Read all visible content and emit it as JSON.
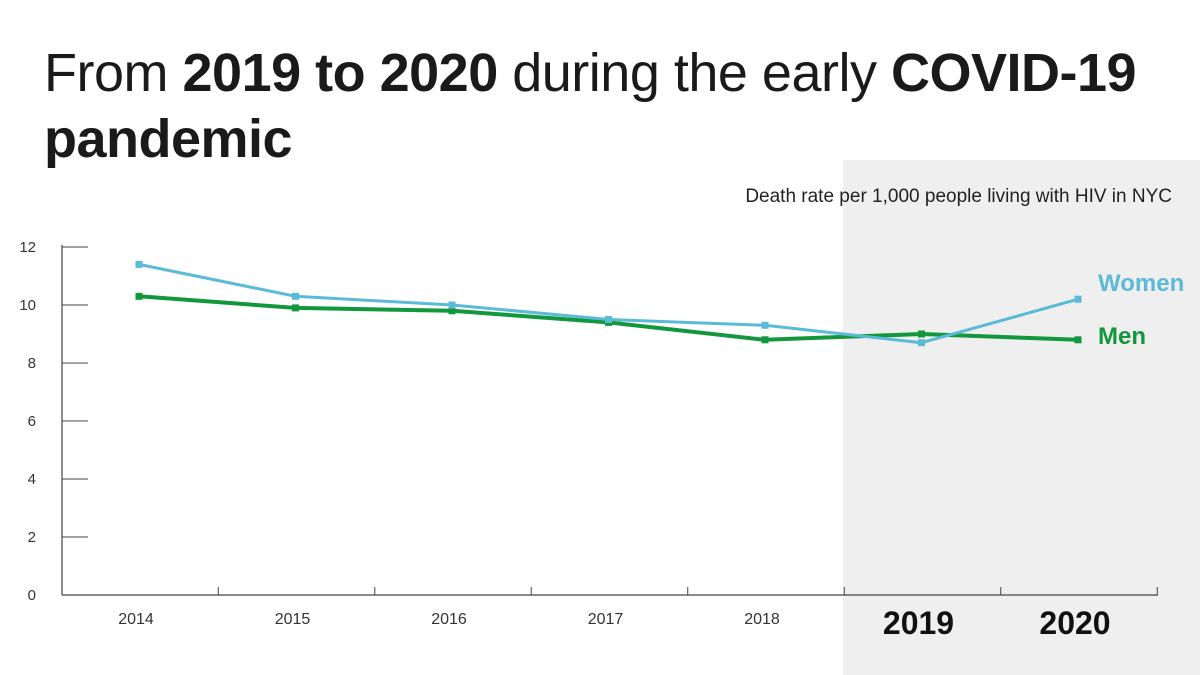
{
  "title": {
    "parts": [
      {
        "text": "From ",
        "bold": false
      },
      {
        "text": "2019 to 2020",
        "bold": true
      },
      {
        "text": " during the early ",
        "bold": false
      },
      {
        "text": "COVID-19 pandemic",
        "bold": true
      }
    ]
  },
  "chart_data": {
    "type": "line",
    "subtitle": "Death rate per 1,000 people living with HIV in NYC",
    "categories": [
      "2014",
      "2015",
      "2016",
      "2017",
      "2018",
      "2019",
      "2020"
    ],
    "emphasized_categories": [
      "2019",
      "2020"
    ],
    "highlight_range": [
      "2019",
      "2020"
    ],
    "highlight_color": "#efefef",
    "ylim": [
      0,
      12
    ],
    "yticks": [
      0,
      2,
      4,
      6,
      8,
      10,
      12
    ],
    "grid": false,
    "legend_placement": "right",
    "series": [
      {
        "name": "Women",
        "color": "#5bbad8",
        "values": [
          11.4,
          10.3,
          10.0,
          9.5,
          9.3,
          8.7,
          10.2
        ]
      },
      {
        "name": "Men",
        "color": "#12973c",
        "values": [
          10.3,
          9.9,
          9.8,
          9.4,
          8.8,
          9.0,
          8.8
        ]
      }
    ]
  }
}
